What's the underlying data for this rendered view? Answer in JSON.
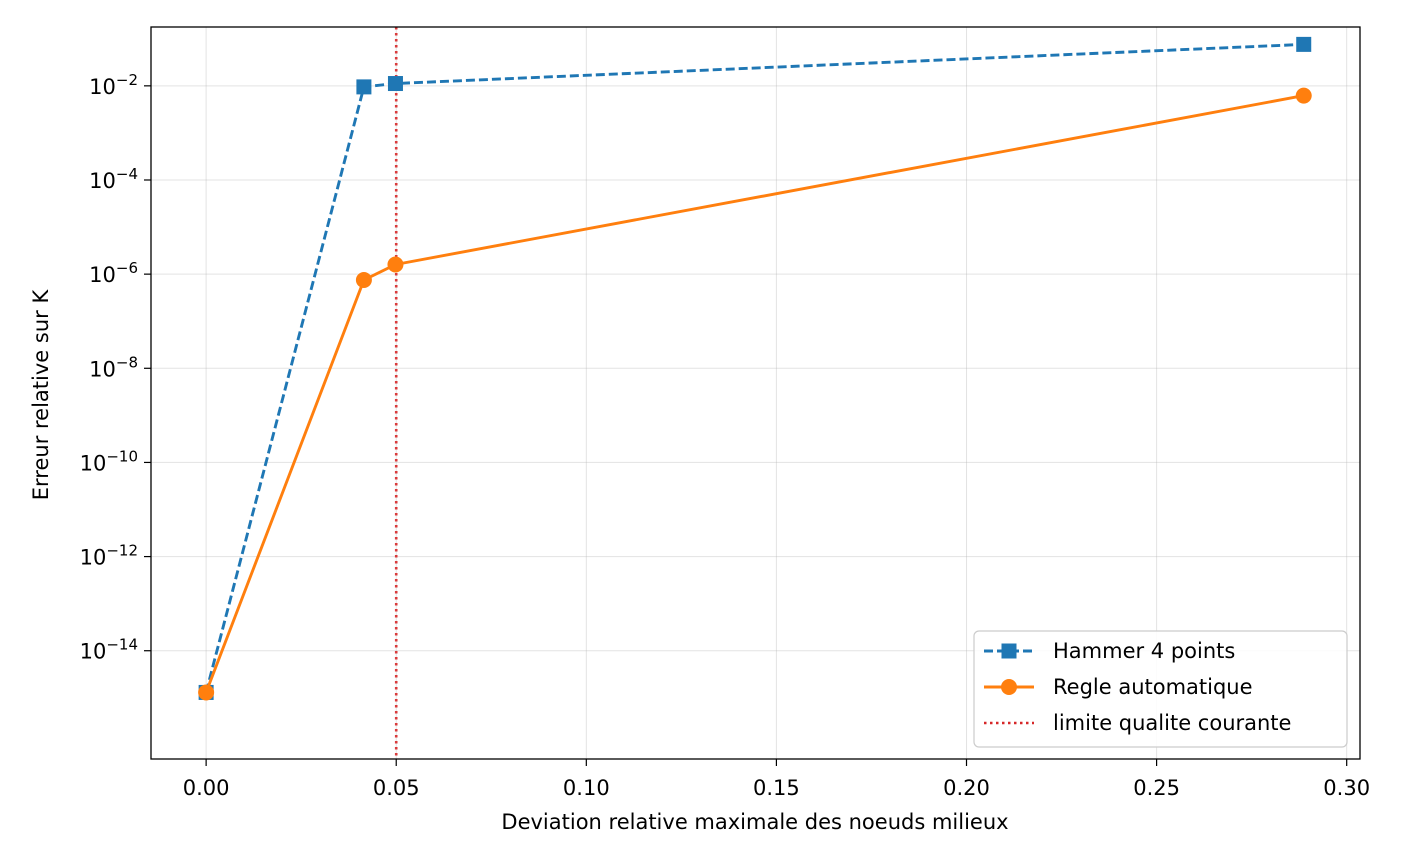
{
  "chart_data": {
    "type": "line",
    "title": "",
    "xlabel": "Deviation relative maximale des noeuds milieux",
    "ylabel": "Erreur relative sur K",
    "yscale": "log",
    "xlim": [
      -0.0145,
      0.3035
    ],
    "ylim_exp": [
      -16.3,
      -0.75
    ],
    "grid": true,
    "legend_position": "lower right",
    "x_ticks": [
      {
        "value": 0.0,
        "label": "0.00"
      },
      {
        "value": 0.05,
        "label": "0.05"
      },
      {
        "value": 0.1,
        "label": "0.10"
      },
      {
        "value": 0.15,
        "label": "0.15"
      },
      {
        "value": 0.2,
        "label": "0.20"
      },
      {
        "value": 0.25,
        "label": "0.25"
      },
      {
        "value": 0.3,
        "label": "0.30"
      }
    ],
    "y_ticks": [
      {
        "exp": -2,
        "base": "10",
        "sup": "−2"
      },
      {
        "exp": -4,
        "base": "10",
        "sup": "−4"
      },
      {
        "exp": -6,
        "base": "10",
        "sup": "−6"
      },
      {
        "exp": -8,
        "base": "10",
        "sup": "−8"
      },
      {
        "exp": -10,
        "base": "10",
        "sup": "−10"
      },
      {
        "exp": -12,
        "base": "10",
        "sup": "−12"
      },
      {
        "exp": -14,
        "base": "10",
        "sup": "−14"
      }
    ],
    "series": [
      {
        "name": "Hammer 4 points",
        "color": "#1f77b4",
        "linestyle": "dashed",
        "marker": "square",
        "x": [
          0.0,
          0.0415,
          0.0498,
          0.2887
        ],
        "y": [
          1.3e-15,
          0.0095,
          0.0112,
          0.076
        ]
      },
      {
        "name": "Regle automatique",
        "color": "#ff7f0e",
        "linestyle": "solid",
        "marker": "circle",
        "x": [
          0.0,
          0.0415,
          0.0498,
          0.2887
        ],
        "y": [
          1.3e-15,
          7.5e-07,
          1.6e-06,
          0.0062
        ]
      }
    ],
    "vlines": [
      {
        "name": "limite qualite courante",
        "x": 0.05,
        "color": "#d62728",
        "linestyle": "dotted"
      }
    ]
  }
}
